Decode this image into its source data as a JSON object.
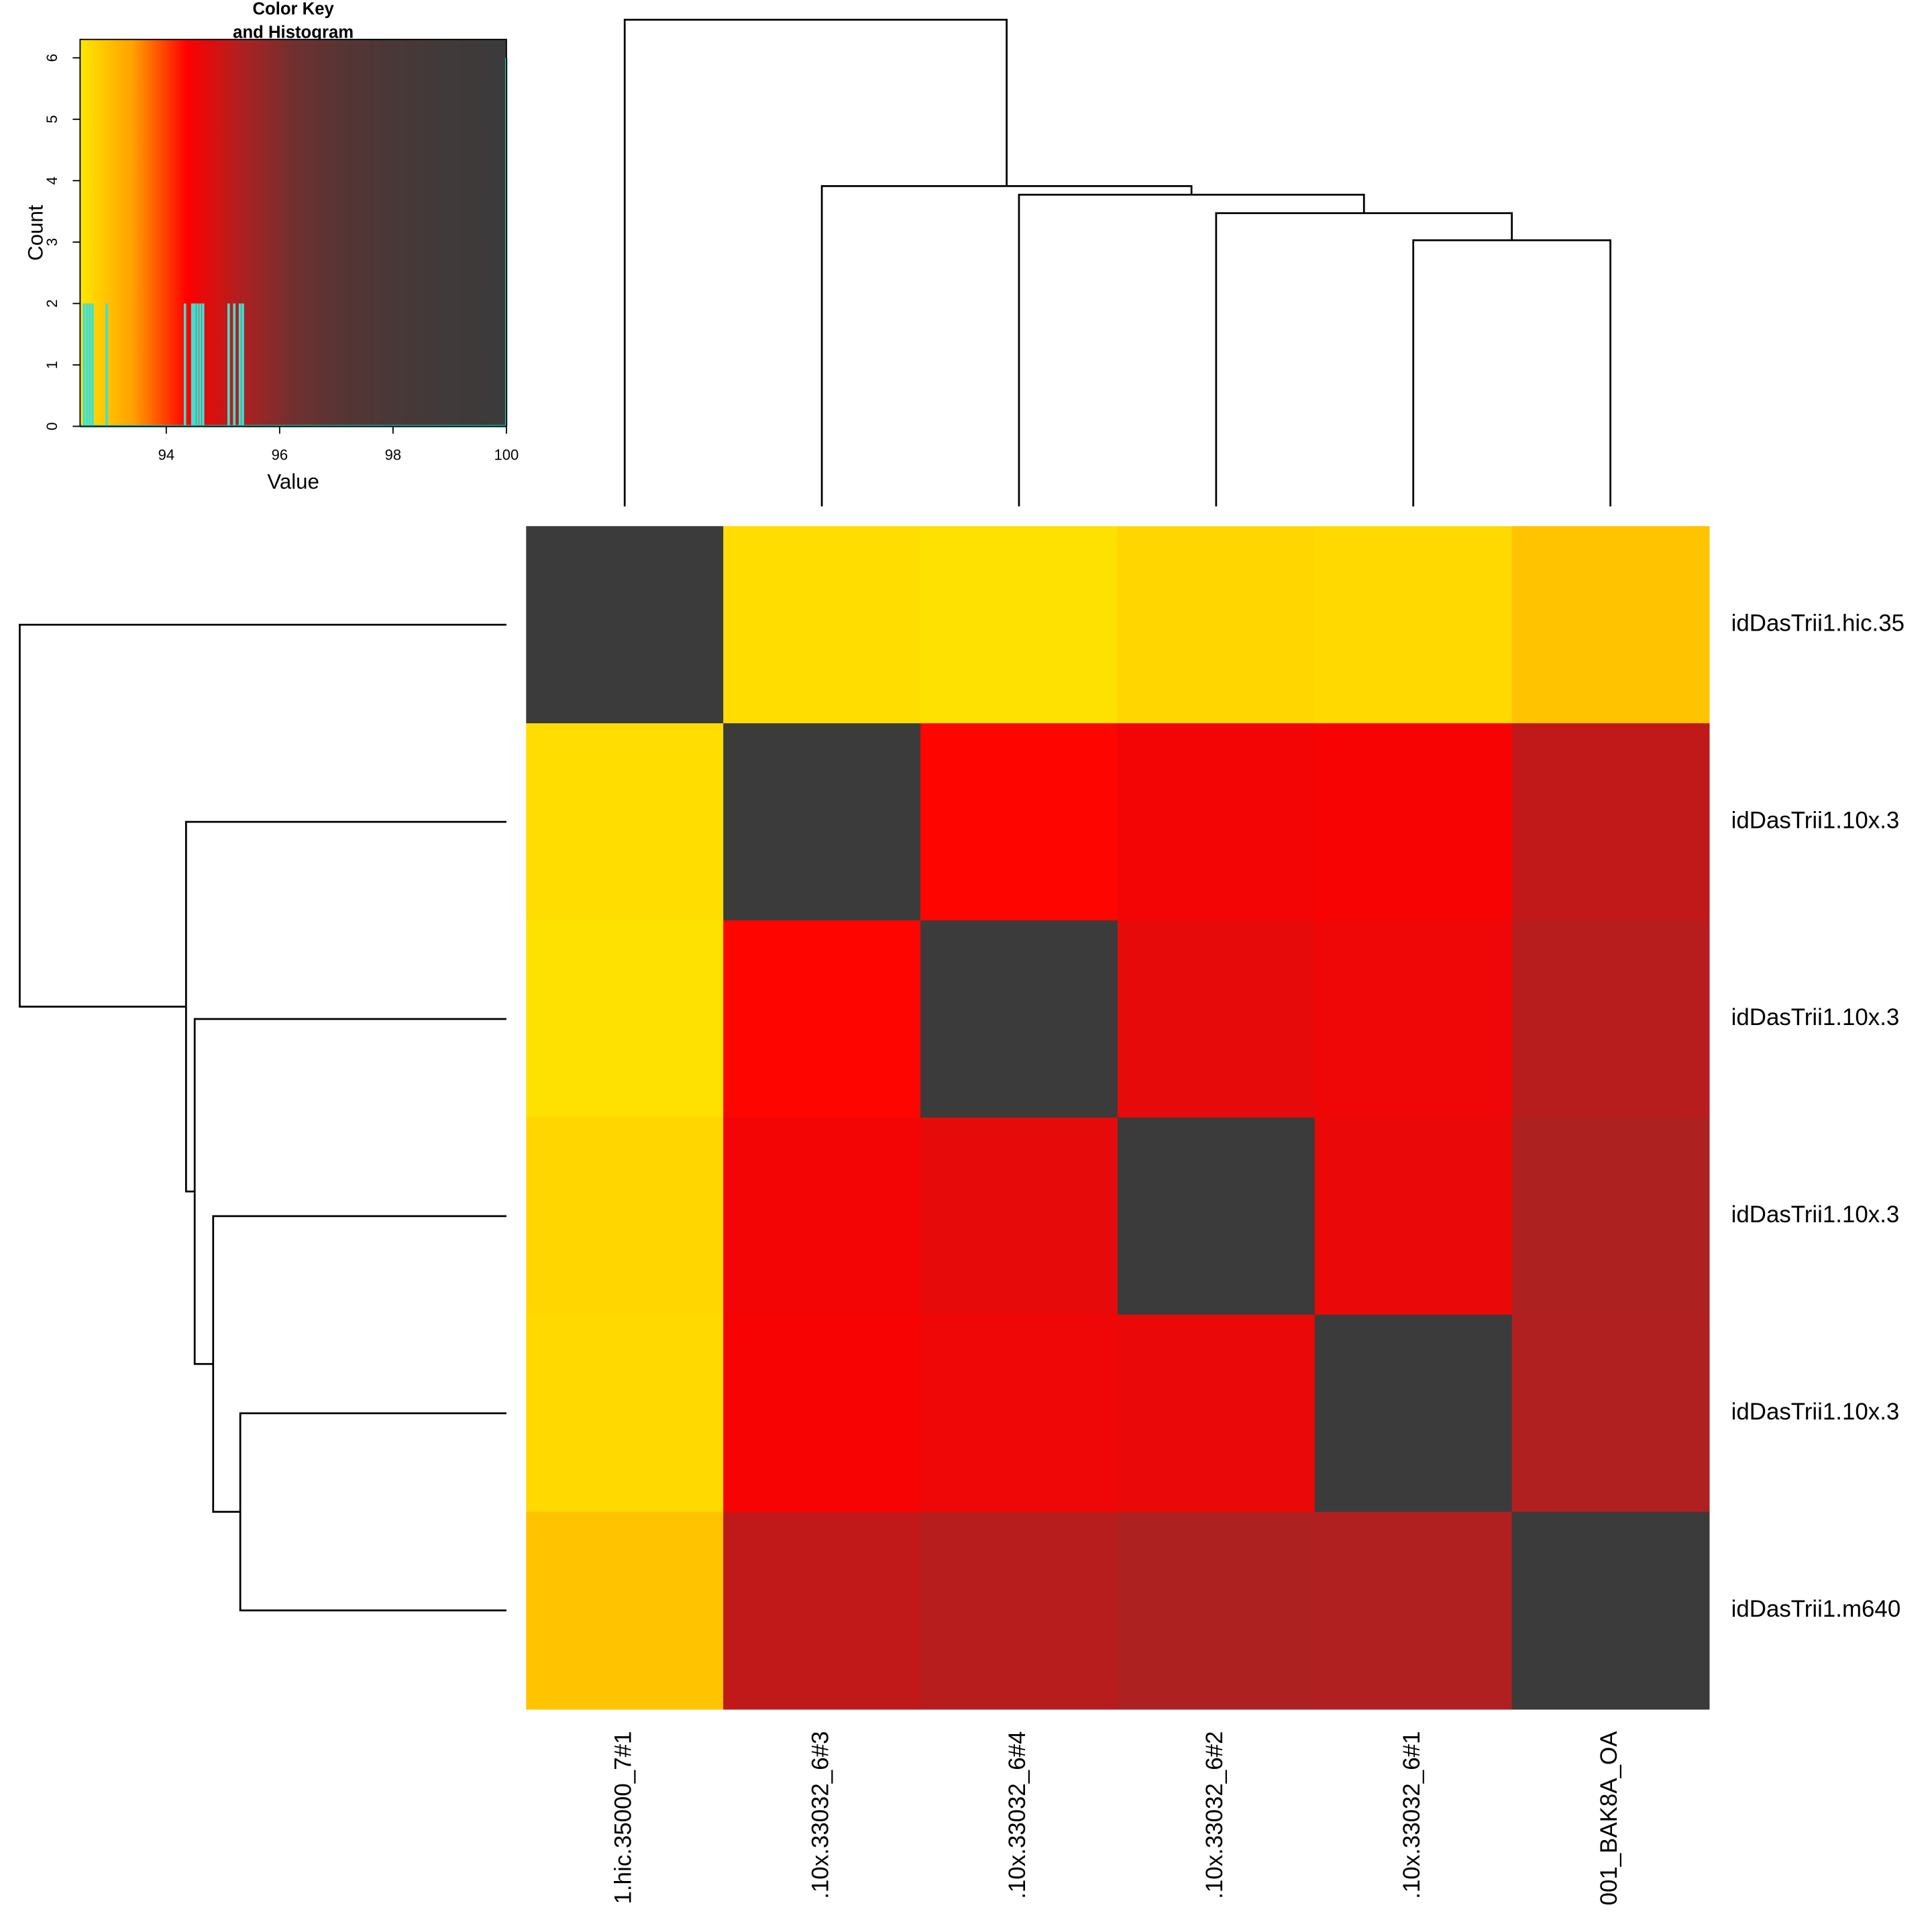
{
  "chart_data": {
    "type": "heatmap",
    "row_labels": [
      "idDasTrii1.hic.35",
      "idDasTrii1.10x.3",
      "idDasTrii1.10x.3",
      "idDasTrii1.10x.3",
      "idDasTrii1.10x.3",
      "idDasTrii1.m640"
    ],
    "col_labels": [
      "1.hic.35000_7#1",
      ".10x.33032_6#3",
      ".10x.33032_6#4",
      ".10x.33032_6#2",
      ".10x.33032_6#1",
      "001_BAK8A_OA"
    ],
    "values": [
      [
        100,
        92.6,
        92.55,
        92.7,
        92.65,
        92.95
      ],
      [
        92.6,
        100,
        94.33,
        94.5,
        94.46,
        95.1
      ],
      [
        92.55,
        94.33,
        100,
        94.65,
        94.55,
        95.2
      ],
      [
        92.7,
        94.5,
        94.65,
        100,
        94.6,
        95.35
      ],
      [
        92.65,
        94.46,
        94.55,
        94.6,
        100,
        95.3
      ],
      [
        92.95,
        95.1,
        95.2,
        95.35,
        95.3,
        100
      ]
    ],
    "dendrogram": {
      "merges": [
        [
          -5,
          -6
        ],
        [
          -4,
          1
        ],
        [
          -3,
          2
        ],
        [
          -2,
          3
        ],
        [
          -1,
          4
        ]
      ],
      "heights": [
        2.16,
        2.38,
        2.53,
        2.6,
        3.95
      ]
    },
    "color_key": {
      "title_lines": [
        "Color Key",
        "and Histogram"
      ],
      "xlabel": "Value",
      "ylabel": "Count",
      "colors": [
        "#ffe600",
        "#ffa000",
        "#ff0000",
        "#b02020",
        "#703030",
        "#553535",
        "#483838",
        "#403a3a",
        "#3b3b3b"
      ],
      "xlim": [
        92.48,
        100
      ],
      "xticks": [
        94,
        96,
        98,
        100
      ],
      "ylim": [
        0,
        6.3
      ],
      "yticks": [
        0,
        1,
        2,
        3,
        4,
        5,
        6
      ],
      "histogram_color": "#40e0d0",
      "histogram": {
        "x": [
          92.55,
          92.6,
          92.65,
          92.7,
          92.95,
          94.33,
          94.46,
          94.5,
          94.55,
          94.6,
          94.65,
          95.1,
          95.2,
          95.3,
          95.35,
          100
        ],
        "counts": [
          2,
          2,
          2,
          2,
          2,
          2,
          2,
          2,
          2,
          2,
          2,
          2,
          2,
          2,
          2,
          6
        ]
      }
    }
  }
}
